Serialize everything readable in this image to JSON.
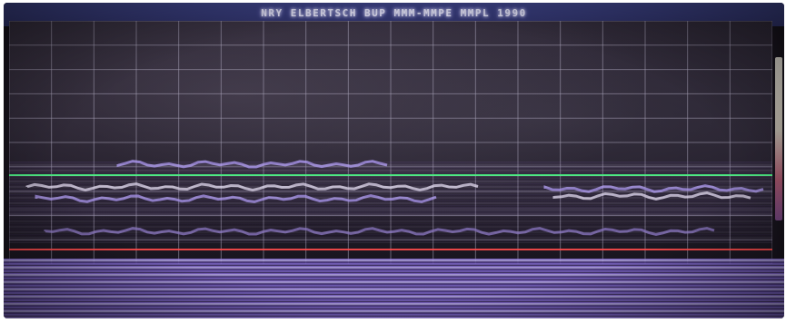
{
  "title": "NRY ELBERTSCH BUP MMM-MMPE MMPL 1990",
  "colors": {
    "grid": "#a7a2b8",
    "line_green": "#40ff7a",
    "line_red": "#ff4b4b",
    "noise_violet": "#b7a3ff",
    "noise_white": "#f5f0ff"
  }
}
